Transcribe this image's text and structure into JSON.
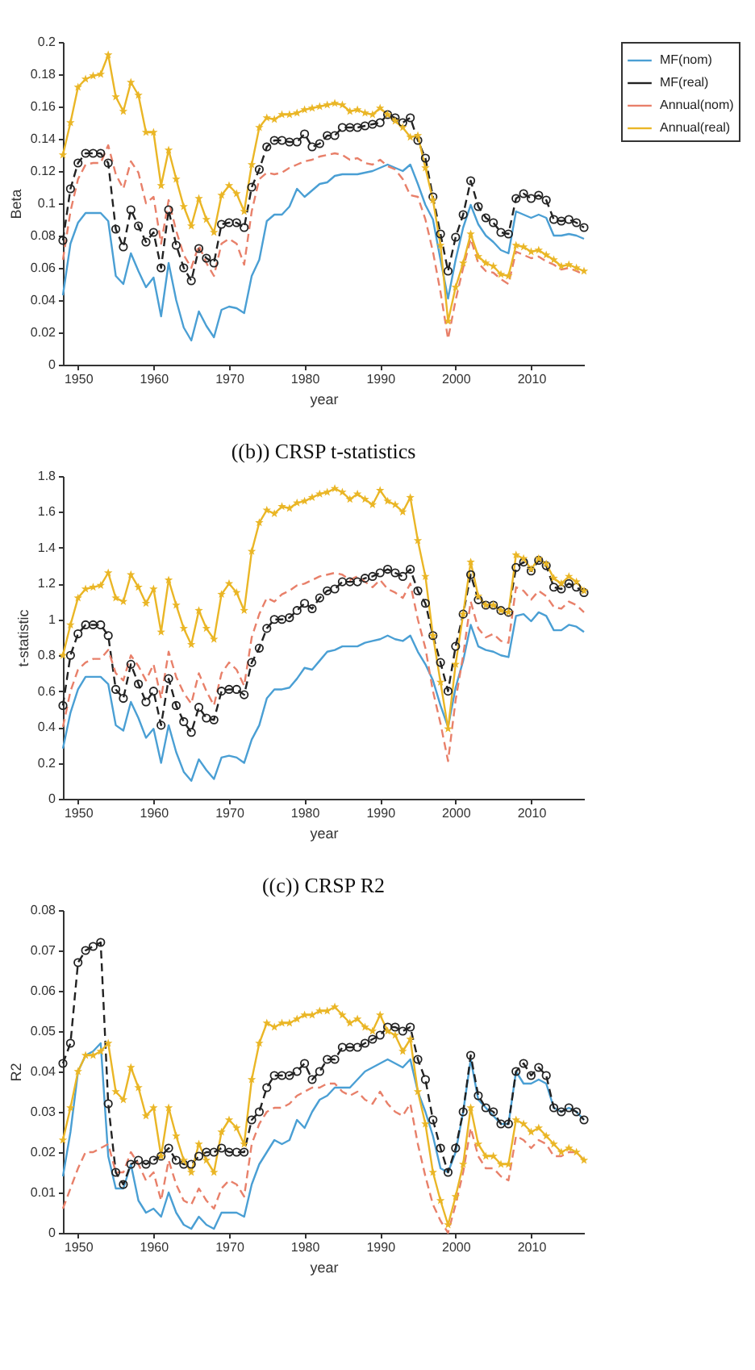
{
  "chart_data": [
    {
      "type": "line",
      "xlabel": "year",
      "ylabel": "Beta",
      "legend": "top right",
      "x": [
        1948,
        1949,
        1950,
        1951,
        1952,
        1953,
        1954,
        1955,
        1956,
        1957,
        1958,
        1959,
        1960,
        1961,
        1962,
        1963,
        1964,
        1965,
        1966,
        1967,
        1968,
        1969,
        1970,
        1971,
        1972,
        1973,
        1974,
        1975,
        1976,
        1977,
        1978,
        1979,
        1980,
        1981,
        1982,
        1983,
        1984,
        1985,
        1986,
        1987,
        1988,
        1989,
        1990,
        1991,
        1992,
        1993,
        1994,
        1995,
        1996,
        1997,
        1998,
        1999,
        2000,
        2001,
        2002,
        2003,
        2004,
        2005,
        2006,
        2007,
        2008,
        2009,
        2010,
        2011,
        2012,
        2013,
        2014,
        2015,
        2016,
        2017
      ],
      "xlim": [
        1948,
        2017
      ],
      "xticks": [
        1950,
        1960,
        1970,
        1980,
        1990,
        2000,
        2010
      ],
      "ylim": [
        0,
        0.2
      ],
      "yticks": [
        0,
        0.02,
        0.04,
        0.06,
        0.08,
        0.1,
        0.12,
        0.14,
        0.16,
        0.18,
        0.2
      ],
      "series": [
        {
          "name": "MF(nom)",
          "color": "#4a9fd4",
          "line_style": "solid",
          "marker": "none",
          "values": [
            0.043,
            0.075,
            0.088,
            0.094,
            0.094,
            0.094,
            0.089,
            0.055,
            0.05,
            0.069,
            0.058,
            0.048,
            0.054,
            0.03,
            0.063,
            0.04,
            0.023,
            0.015,
            0.033,
            0.024,
            0.017,
            0.034,
            0.036,
            0.035,
            0.032,
            0.055,
            0.065,
            0.089,
            0.093,
            0.093,
            0.098,
            0.109,
            0.104,
            0.108,
            0.112,
            0.113,
            0.117,
            0.118,
            0.118,
            0.118,
            0.119,
            0.12,
            0.122,
            0.124,
            0.122,
            0.12,
            0.124,
            0.112,
            0.099,
            0.09,
            0.065,
            0.041,
            0.065,
            0.085,
            0.099,
            0.087,
            0.08,
            0.076,
            0.071,
            0.069,
            0.095,
            0.093,
            0.091,
            0.093,
            0.091,
            0.08,
            0.08,
            0.081,
            0.08,
            0.078
          ]
        },
        {
          "name": "MF(real)",
          "color": "#222222",
          "line_style": "dashed",
          "marker": "circle",
          "values": [
            0.077,
            0.109,
            0.125,
            0.131,
            0.131,
            0.131,
            0.125,
            0.084,
            0.073,
            0.096,
            0.086,
            0.076,
            0.082,
            0.06,
            0.096,
            0.074,
            0.06,
            0.052,
            0.072,
            0.066,
            0.063,
            0.087,
            0.088,
            0.088,
            0.085,
            0.11,
            0.121,
            0.135,
            0.139,
            0.139,
            0.138,
            0.138,
            0.143,
            0.135,
            0.137,
            0.142,
            0.142,
            0.147,
            0.147,
            0.147,
            0.148,
            0.149,
            0.15,
            0.155,
            0.153,
            0.15,
            0.153,
            0.139,
            0.128,
            0.104,
            0.081,
            0.058,
            0.079,
            0.093,
            0.114,
            0.098,
            0.091,
            0.088,
            0.082,
            0.081,
            0.103,
            0.106,
            0.103,
            0.105,
            0.102,
            0.09,
            0.089,
            0.09,
            0.088,
            0.085
          ]
        },
        {
          "name": "Annual(nom)",
          "color": "#e8806a",
          "line_style": "dashed",
          "marker": "none",
          "values": [
            0.065,
            0.095,
            0.115,
            0.124,
            0.125,
            0.125,
            0.136,
            0.118,
            0.109,
            0.126,
            0.119,
            0.1,
            0.104,
            0.075,
            0.102,
            0.083,
            0.068,
            0.06,
            0.074,
            0.063,
            0.055,
            0.075,
            0.078,
            0.075,
            0.062,
            0.095,
            0.115,
            0.119,
            0.118,
            0.119,
            0.122,
            0.124,
            0.126,
            0.127,
            0.129,
            0.13,
            0.131,
            0.13,
            0.127,
            0.128,
            0.125,
            0.124,
            0.127,
            0.123,
            0.121,
            0.115,
            0.105,
            0.104,
            0.09,
            0.07,
            0.045,
            0.016,
            0.04,
            0.06,
            0.078,
            0.063,
            0.058,
            0.057,
            0.053,
            0.05,
            0.07,
            0.068,
            0.066,
            0.067,
            0.064,
            0.062,
            0.059,
            0.06,
            0.058,
            0.056
          ]
        },
        {
          "name": "Annual(real)",
          "color": "#eab626",
          "line_style": "solid",
          "marker": "star",
          "values": [
            0.13,
            0.15,
            0.172,
            0.177,
            0.179,
            0.18,
            0.192,
            0.166,
            0.157,
            0.175,
            0.167,
            0.144,
            0.144,
            0.111,
            0.133,
            0.115,
            0.098,
            0.086,
            0.103,
            0.09,
            0.082,
            0.105,
            0.111,
            0.106,
            0.095,
            0.124,
            0.147,
            0.153,
            0.152,
            0.155,
            0.155,
            0.156,
            0.158,
            0.159,
            0.16,
            0.161,
            0.162,
            0.161,
            0.157,
            0.158,
            0.156,
            0.155,
            0.159,
            0.155,
            0.151,
            0.147,
            0.141,
            0.142,
            0.122,
            0.102,
            0.074,
            0.027,
            0.048,
            0.063,
            0.081,
            0.067,
            0.063,
            0.061,
            0.056,
            0.055,
            0.074,
            0.073,
            0.07,
            0.071,
            0.068,
            0.065,
            0.061,
            0.062,
            0.06,
            0.058
          ]
        }
      ]
    },
    {
      "type": "line",
      "title": "((b)) CRSP t-statistics",
      "xlabel": "year",
      "ylabel": "t-statistic",
      "legend": "top right",
      "x": [
        1948,
        1949,
        1950,
        1951,
        1952,
        1953,
        1954,
        1955,
        1956,
        1957,
        1958,
        1959,
        1960,
        1961,
        1962,
        1963,
        1964,
        1965,
        1966,
        1967,
        1968,
        1969,
        1970,
        1971,
        1972,
        1973,
        1974,
        1975,
        1976,
        1977,
        1978,
        1979,
        1980,
        1981,
        1982,
        1983,
        1984,
        1985,
        1986,
        1987,
        1988,
        1989,
        1990,
        1991,
        1992,
        1993,
        1994,
        1995,
        1996,
        1997,
        1998,
        1999,
        2000,
        2001,
        2002,
        2003,
        2004,
        2005,
        2006,
        2007,
        2008,
        2009,
        2010,
        2011,
        2012,
        2013,
        2014,
        2015,
        2016,
        2017
      ],
      "xlim": [
        1948,
        2017
      ],
      "xticks": [
        1950,
        1960,
        1970,
        1980,
        1990,
        2000,
        2010
      ],
      "ylim": [
        0,
        1.8
      ],
      "yticks": [
        0,
        0.2,
        0.4,
        0.6,
        0.8,
        1,
        1.2,
        1.4,
        1.6,
        1.8
      ],
      "series": [
        {
          "name": "MF(nom)",
          "color": "#4a9fd4",
          "line_style": "solid",
          "marker": "none",
          "values": [
            0.28,
            0.48,
            0.61,
            0.68,
            0.68,
            0.68,
            0.64,
            0.41,
            0.38,
            0.54,
            0.45,
            0.34,
            0.39,
            0.2,
            0.41,
            0.26,
            0.15,
            0.1,
            0.22,
            0.16,
            0.11,
            0.23,
            0.24,
            0.23,
            0.2,
            0.33,
            0.41,
            0.56,
            0.61,
            0.61,
            0.62,
            0.67,
            0.73,
            0.72,
            0.77,
            0.82,
            0.83,
            0.85,
            0.85,
            0.85,
            0.87,
            0.88,
            0.89,
            0.91,
            0.89,
            0.88,
            0.91,
            0.82,
            0.75,
            0.66,
            0.52,
            0.4,
            0.62,
            0.77,
            0.97,
            0.85,
            0.83,
            0.82,
            0.8,
            0.79,
            1.02,
            1.03,
            0.99,
            1.04,
            1.02,
            0.94,
            0.94,
            0.97,
            0.96,
            0.93
          ]
        },
        {
          "name": "MF(real)",
          "color": "#222222",
          "line_style": "dashed",
          "marker": "circle",
          "values": [
            0.52,
            0.8,
            0.92,
            0.97,
            0.97,
            0.97,
            0.91,
            0.61,
            0.56,
            0.75,
            0.64,
            0.54,
            0.6,
            0.41,
            0.67,
            0.52,
            0.43,
            0.37,
            0.51,
            0.45,
            0.44,
            0.6,
            0.61,
            0.61,
            0.58,
            0.76,
            0.84,
            0.95,
            1.0,
            1.0,
            1.01,
            1.05,
            1.09,
            1.06,
            1.12,
            1.16,
            1.17,
            1.21,
            1.21,
            1.21,
            1.23,
            1.24,
            1.26,
            1.28,
            1.26,
            1.24,
            1.28,
            1.16,
            1.09,
            0.91,
            0.76,
            0.6,
            0.85,
            1.03,
            1.25,
            1.11,
            1.08,
            1.08,
            1.05,
            1.04,
            1.29,
            1.32,
            1.27,
            1.33,
            1.3,
            1.18,
            1.17,
            1.2,
            1.18,
            1.15
          ]
        },
        {
          "name": "Annual(nom)",
          "color": "#e8806a",
          "line_style": "dashed",
          "marker": "none",
          "values": [
            0.4,
            0.6,
            0.72,
            0.76,
            0.78,
            0.78,
            0.83,
            0.7,
            0.66,
            0.8,
            0.74,
            0.66,
            0.75,
            0.56,
            0.82,
            0.68,
            0.59,
            0.53,
            0.7,
            0.6,
            0.52,
            0.7,
            0.76,
            0.72,
            0.63,
            0.9,
            1.03,
            1.12,
            1.1,
            1.14,
            1.16,
            1.19,
            1.2,
            1.22,
            1.24,
            1.25,
            1.26,
            1.25,
            1.22,
            1.24,
            1.21,
            1.18,
            1.22,
            1.17,
            1.15,
            1.12,
            1.2,
            1.0,
            0.84,
            0.6,
            0.42,
            0.21,
            0.55,
            0.8,
            1.1,
            0.95,
            0.9,
            0.92,
            0.88,
            0.87,
            1.18,
            1.16,
            1.11,
            1.16,
            1.13,
            1.07,
            1.06,
            1.1,
            1.08,
            1.04
          ]
        },
        {
          "name": "Annual(real)",
          "color": "#eab626",
          "line_style": "solid",
          "marker": "star",
          "values": [
            0.8,
            0.97,
            1.12,
            1.17,
            1.18,
            1.19,
            1.26,
            1.12,
            1.1,
            1.25,
            1.18,
            1.09,
            1.17,
            0.93,
            1.22,
            1.08,
            0.95,
            0.86,
            1.05,
            0.95,
            0.89,
            1.14,
            1.2,
            1.15,
            1.05,
            1.38,
            1.54,
            1.61,
            1.59,
            1.63,
            1.62,
            1.65,
            1.66,
            1.68,
            1.7,
            1.71,
            1.73,
            1.71,
            1.67,
            1.7,
            1.67,
            1.64,
            1.72,
            1.66,
            1.64,
            1.6,
            1.68,
            1.44,
            1.24,
            0.91,
            0.65,
            0.39,
            0.75,
            1.03,
            1.32,
            1.13,
            1.08,
            1.08,
            1.05,
            1.04,
            1.36,
            1.34,
            1.28,
            1.34,
            1.31,
            1.23,
            1.2,
            1.24,
            1.21,
            1.16
          ]
        }
      ]
    },
    {
      "type": "line",
      "title": "((c)) CRSP R2",
      "xlabel": "year",
      "ylabel": "R2",
      "legend": "top right",
      "x": [
        1948,
        1949,
        1950,
        1951,
        1952,
        1953,
        1954,
        1955,
        1956,
        1957,
        1958,
        1959,
        1960,
        1961,
        1962,
        1963,
        1964,
        1965,
        1966,
        1967,
        1968,
        1969,
        1970,
        1971,
        1972,
        1973,
        1974,
        1975,
        1976,
        1977,
        1978,
        1979,
        1980,
        1981,
        1982,
        1983,
        1984,
        1985,
        1986,
        1987,
        1988,
        1989,
        1990,
        1991,
        1992,
        1993,
        1994,
        1995,
        1996,
        1997,
        1998,
        1999,
        2000,
        2001,
        2002,
        2003,
        2004,
        2005,
        2006,
        2007,
        2008,
        2009,
        2010,
        2011,
        2012,
        2013,
        2014,
        2015,
        2016,
        2017
      ],
      "xlim": [
        1948,
        2017
      ],
      "xticks": [
        1950,
        1960,
        1970,
        1980,
        1990,
        2000,
        2010
      ],
      "ylim": [
        0,
        0.08
      ],
      "yticks": [
        0,
        0.01,
        0.02,
        0.03,
        0.04,
        0.05,
        0.06,
        0.07,
        0.08
      ],
      "series": [
        {
          "name": "MF(nom)",
          "color": "#4a9fd4",
          "line_style": "solid",
          "marker": "none",
          "values": [
            0.014,
            0.025,
            0.04,
            0.044,
            0.045,
            0.047,
            0.019,
            0.011,
            0.011,
            0.017,
            0.008,
            0.005,
            0.006,
            0.004,
            0.01,
            0.005,
            0.002,
            0.001,
            0.004,
            0.002,
            0.001,
            0.005,
            0.005,
            0.005,
            0.004,
            0.012,
            0.017,
            0.02,
            0.023,
            0.022,
            0.023,
            0.028,
            0.026,
            0.03,
            0.033,
            0.034,
            0.036,
            0.036,
            0.036,
            0.038,
            0.04,
            0.041,
            0.042,
            0.043,
            0.042,
            0.041,
            0.043,
            0.035,
            0.03,
            0.024,
            0.016,
            0.015,
            0.02,
            0.03,
            0.043,
            0.033,
            0.031,
            0.029,
            0.027,
            0.027,
            0.04,
            0.037,
            0.037,
            0.038,
            0.037,
            0.031,
            0.03,
            0.031,
            0.03,
            0.028
          ]
        },
        {
          "name": "MF(real)",
          "color": "#222222",
          "line_style": "dashed",
          "marker": "circle",
          "values": [
            0.042,
            0.047,
            0.067,
            0.07,
            0.071,
            0.072,
            0.032,
            0.015,
            0.012,
            0.017,
            0.018,
            0.017,
            0.018,
            0.019,
            0.021,
            0.018,
            0.017,
            0.017,
            0.019,
            0.02,
            0.02,
            0.021,
            0.02,
            0.02,
            0.02,
            0.028,
            0.03,
            0.036,
            0.039,
            0.039,
            0.039,
            0.04,
            0.042,
            0.038,
            0.04,
            0.043,
            0.043,
            0.046,
            0.046,
            0.046,
            0.047,
            0.048,
            0.049,
            0.051,
            0.051,
            0.05,
            0.051,
            0.043,
            0.038,
            0.028,
            0.021,
            0.015,
            0.021,
            0.03,
            0.044,
            0.034,
            0.031,
            0.03,
            0.027,
            0.027,
            0.04,
            0.042,
            0.039,
            0.041,
            0.039,
            0.031,
            0.03,
            0.031,
            0.03,
            0.028
          ]
        },
        {
          "name": "Annual(nom)",
          "color": "#e8806a",
          "line_style": "dashed",
          "marker": "none",
          "values": [
            0.006,
            0.011,
            0.016,
            0.02,
            0.02,
            0.021,
            0.022,
            0.015,
            0.015,
            0.02,
            0.017,
            0.013,
            0.015,
            0.008,
            0.018,
            0.012,
            0.008,
            0.007,
            0.011,
            0.008,
            0.006,
            0.011,
            0.013,
            0.012,
            0.009,
            0.022,
            0.027,
            0.03,
            0.031,
            0.031,
            0.032,
            0.034,
            0.035,
            0.036,
            0.036,
            0.037,
            0.037,
            0.035,
            0.034,
            0.035,
            0.033,
            0.032,
            0.035,
            0.032,
            0.03,
            0.029,
            0.032,
            0.022,
            0.014,
            0.007,
            0.003,
            0.0,
            0.007,
            0.015,
            0.026,
            0.019,
            0.016,
            0.016,
            0.014,
            0.013,
            0.024,
            0.023,
            0.021,
            0.023,
            0.022,
            0.019,
            0.019,
            0.02,
            0.02,
            0.018
          ]
        },
        {
          "name": "Annual(real)",
          "color": "#eab626",
          "line_style": "solid",
          "marker": "star",
          "values": [
            0.023,
            0.031,
            0.04,
            0.044,
            0.044,
            0.045,
            0.047,
            0.035,
            0.033,
            0.041,
            0.036,
            0.029,
            0.031,
            0.019,
            0.031,
            0.024,
            0.018,
            0.015,
            0.022,
            0.018,
            0.015,
            0.025,
            0.028,
            0.026,
            0.022,
            0.038,
            0.047,
            0.052,
            0.051,
            0.052,
            0.052,
            0.053,
            0.054,
            0.054,
            0.055,
            0.055,
            0.056,
            0.054,
            0.052,
            0.053,
            0.051,
            0.05,
            0.054,
            0.05,
            0.049,
            0.045,
            0.048,
            0.035,
            0.027,
            0.015,
            0.008,
            0.002,
            0.009,
            0.017,
            0.031,
            0.022,
            0.019,
            0.019,
            0.017,
            0.017,
            0.028,
            0.027,
            0.025,
            0.026,
            0.024,
            0.022,
            0.02,
            0.021,
            0.02,
            0.018
          ]
        }
      ]
    }
  ]
}
